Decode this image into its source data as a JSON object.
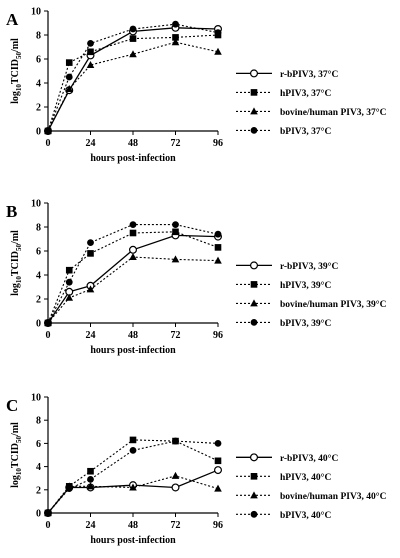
{
  "chart_data": [
    {
      "panel_label": "A",
      "type": "line",
      "xlabel": "hours post-infection",
      "ylabel": "log10TCID50/ml",
      "ylabel_parts": [
        "log",
        "10",
        "TCID",
        "50",
        "/ml"
      ],
      "xlim": [
        0,
        96
      ],
      "ylim": [
        0,
        10
      ],
      "xticks": [
        0,
        24,
        48,
        72,
        96
      ],
      "yticks": [
        0,
        2,
        4,
        6,
        8,
        10
      ],
      "grid": false,
      "legend_position": "right",
      "series": [
        {
          "name": "r-bPIV3, 37°C",
          "marker": "open-circle",
          "line": "solid",
          "x": [
            0,
            12,
            24,
            48,
            72,
            96
          ],
          "y": [
            0,
            3.4,
            6.3,
            8.3,
            8.6,
            8.5
          ]
        },
        {
          "name": "hPIV3, 37°C",
          "marker": "filled-square",
          "line": "dotted",
          "x": [
            0,
            12,
            24,
            48,
            72,
            96
          ],
          "y": [
            0,
            5.7,
            6.6,
            7.7,
            7.8,
            8.0
          ]
        },
        {
          "name": "bovine/human PIV3, 37°C",
          "marker": "filled-triangle",
          "line": "dotted",
          "x": [
            0,
            12,
            24,
            48,
            72,
            96
          ],
          "y": [
            0,
            3.5,
            5.5,
            6.4,
            7.4,
            6.6
          ]
        },
        {
          "name": "bPIV3, 37°C",
          "marker": "filled-circle",
          "line": "dotted",
          "x": [
            0,
            12,
            24,
            48,
            72,
            96
          ],
          "y": [
            0,
            4.5,
            7.3,
            8.5,
            8.9,
            8.2
          ]
        }
      ]
    },
    {
      "panel_label": "B",
      "type": "line",
      "xlabel": "hours post-infection",
      "ylabel": "log10TCID50/ml",
      "ylabel_parts": [
        "log",
        "10",
        "TCID",
        "50",
        "/ml"
      ],
      "xlim": [
        0,
        96
      ],
      "ylim": [
        0,
        10
      ],
      "xticks": [
        0,
        24,
        48,
        72,
        96
      ],
      "yticks": [
        0,
        2,
        4,
        6,
        8,
        10
      ],
      "grid": false,
      "legend_position": "right",
      "series": [
        {
          "name": "r-bPIV3, 39°C",
          "marker": "open-circle",
          "line": "solid",
          "x": [
            0,
            12,
            24,
            48,
            72,
            96
          ],
          "y": [
            0,
            2.6,
            3.1,
            6.1,
            7.3,
            7.2
          ]
        },
        {
          "name": "hPIV3, 39°C",
          "marker": "filled-square",
          "line": "dotted",
          "x": [
            0,
            12,
            24,
            48,
            72,
            96
          ],
          "y": [
            0,
            4.4,
            5.8,
            7.5,
            7.6,
            6.3
          ]
        },
        {
          "name": "bovine/human PIV3, 39°C",
          "marker": "filled-triangle",
          "line": "dotted",
          "x": [
            0,
            12,
            24,
            48,
            72,
            96
          ],
          "y": [
            0,
            2.1,
            2.8,
            5.5,
            5.3,
            5.2
          ]
        },
        {
          "name": "bPIV3, 39°C",
          "marker": "filled-circle",
          "line": "dotted",
          "x": [
            0,
            12,
            24,
            48,
            72,
            96
          ],
          "y": [
            0,
            3.4,
            6.7,
            8.2,
            8.2,
            7.4
          ]
        }
      ]
    },
    {
      "panel_label": "C",
      "type": "line",
      "xlabel": "hours post-infection",
      "ylabel": "log10TCID50/ml",
      "ylabel_parts": [
        "log",
        "10",
        "TCID",
        "50",
        "/ml"
      ],
      "xlim": [
        0,
        96
      ],
      "ylim": [
        0,
        10
      ],
      "xticks": [
        0,
        24,
        48,
        72,
        96
      ],
      "yticks": [
        0,
        2,
        4,
        6,
        8,
        10
      ],
      "grid": false,
      "legend_position": "right",
      "series": [
        {
          "name": "r-bPIV3, 40°C",
          "marker": "open-circle",
          "line": "solid",
          "x": [
            0,
            12,
            24,
            48,
            72,
            96
          ],
          "y": [
            0,
            2.2,
            2.2,
            2.4,
            2.2,
            3.7
          ]
        },
        {
          "name": "hPIV3, 40°C",
          "marker": "filled-square",
          "line": "dotted",
          "x": [
            0,
            12,
            24,
            48,
            72,
            96
          ],
          "y": [
            0,
            2.3,
            3.6,
            6.3,
            6.2,
            4.5
          ]
        },
        {
          "name": "bovine/human PIV3, 40°C",
          "marker": "filled-triangle",
          "line": "dotted",
          "x": [
            0,
            12,
            24,
            48,
            72,
            96
          ],
          "y": [
            0,
            2.3,
            2.3,
            2.2,
            3.2,
            2.1
          ]
        },
        {
          "name": "bPIV3, 40°C",
          "marker": "filled-circle",
          "line": "dotted",
          "x": [
            0,
            12,
            24,
            48,
            72,
            96
          ],
          "y": [
            0,
            2.1,
            2.9,
            5.4,
            6.2,
            6.0
          ]
        }
      ]
    }
  ]
}
